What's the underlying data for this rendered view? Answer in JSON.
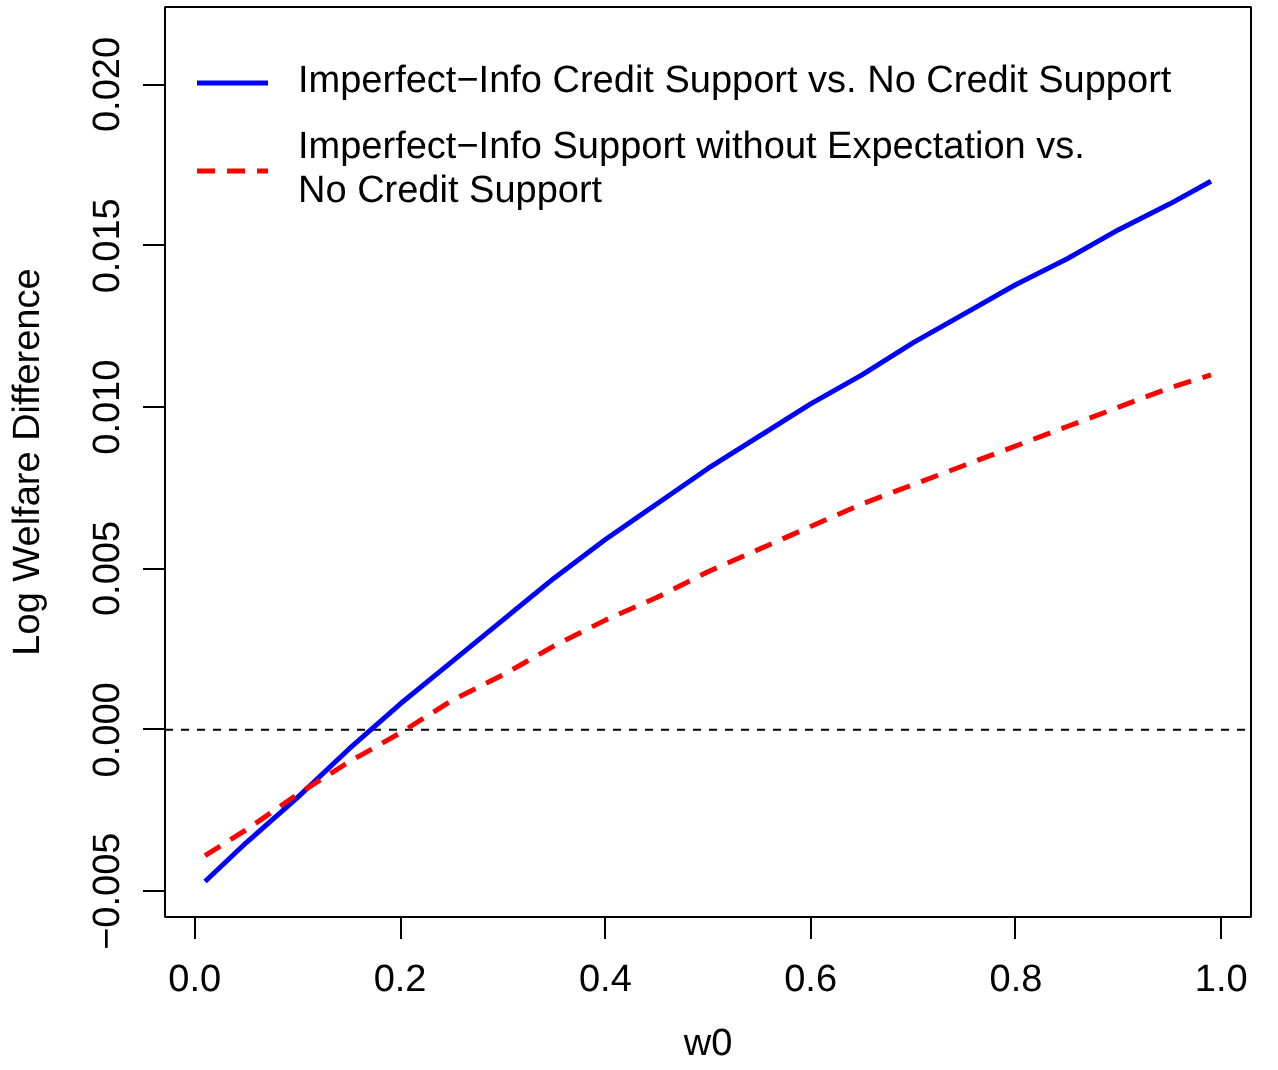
{
  "chart_data": {
    "type": "line",
    "xlabel": "w0",
    "ylabel": "Log Welfare Difference",
    "x": [
      0.01,
      0.05,
      0.1,
      0.15,
      0.2,
      0.25,
      0.3,
      0.35,
      0.4,
      0.45,
      0.5,
      0.55,
      0.6,
      0.65,
      0.7,
      0.75,
      0.8,
      0.85,
      0.9,
      0.95,
      0.99
    ],
    "series": [
      {
        "name": "Imperfect−Info Credit Support vs. No Credit Support",
        "color": "#0000ff",
        "line_style": "solid",
        "values": [
          -0.0047,
          -0.0035,
          -0.0021,
          -0.0006,
          0.0008,
          0.0021,
          0.0034,
          0.0047,
          0.0059,
          0.007,
          0.0081,
          0.0091,
          0.0101,
          0.011,
          0.012,
          0.0129,
          0.0138,
          0.0146,
          0.0155,
          0.0163,
          0.017
        ]
      },
      {
        "name": "Imperfect−Info Support without Expectation vs.\nNo Credit Support",
        "color": "#ff0000",
        "line_style": "dashed",
        "values": [
          -0.0039,
          -0.0031,
          -0.002,
          -0.001,
          -0.0001,
          0.0009,
          0.0017,
          0.0026,
          0.0034,
          0.0041,
          0.0049,
          0.0056,
          0.0063,
          0.007,
          0.0076,
          0.0082,
          0.0088,
          0.0094,
          0.01,
          0.0106,
          0.011
        ]
      }
    ],
    "xlim": [
      -0.029,
      1.029
    ],
    "ylim": [
      -0.0058,
      0.0224
    ],
    "xticks": [
      {
        "value": 0.0,
        "label": "0.0"
      },
      {
        "value": 0.2,
        "label": "0.2"
      },
      {
        "value": 0.4,
        "label": "0.4"
      },
      {
        "value": 0.6,
        "label": "0.6"
      },
      {
        "value": 0.8,
        "label": "0.8"
      },
      {
        "value": 1.0,
        "label": "1.0"
      }
    ],
    "yticks": [
      {
        "value": -0.005,
        "label": "−0.005"
      },
      {
        "value": 0.0,
        "label": "0.000"
      },
      {
        "value": 0.005,
        "label": "0.005"
      },
      {
        "value": 0.01,
        "label": "0.010"
      },
      {
        "value": 0.015,
        "label": "0.015"
      },
      {
        "value": 0.02,
        "label": "0.020"
      }
    ],
    "ref_lines": [
      {
        "axis": "y",
        "value": 0,
        "color": "#000000",
        "line_style": "dashed"
      }
    ],
    "grid": false,
    "legend": "top left"
  }
}
